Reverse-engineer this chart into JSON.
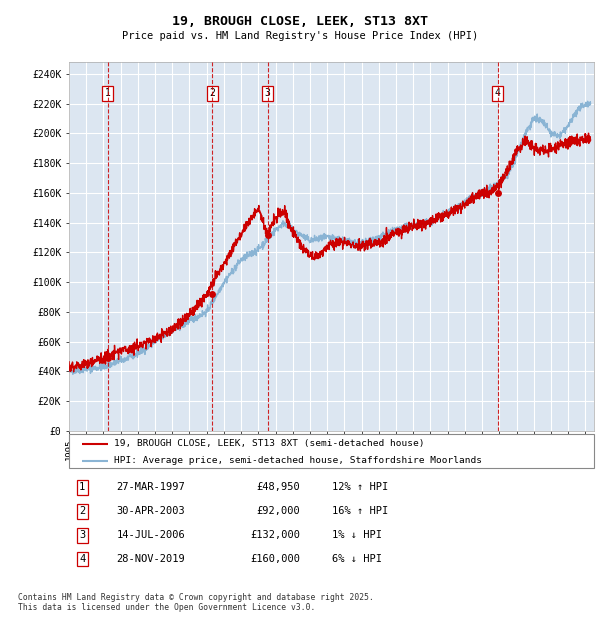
{
  "title": "19, BROUGH CLOSE, LEEK, ST13 8XT",
  "subtitle": "Price paid vs. HM Land Registry's House Price Index (HPI)",
  "ylabel_vals": [
    "£0",
    "£20K",
    "£40K",
    "£60K",
    "£80K",
    "£100K",
    "£120K",
    "£140K",
    "£160K",
    "£180K",
    "£200K",
    "£220K",
    "£240K"
  ],
  "yticks": [
    0,
    20000,
    40000,
    60000,
    80000,
    100000,
    120000,
    140000,
    160000,
    180000,
    200000,
    220000,
    240000
  ],
  "ylim": [
    0,
    248000
  ],
  "xlim_start": 1995.0,
  "xlim_end": 2025.5,
  "plot_bg_color": "#dce6f1",
  "grid_color": "#ffffff",
  "hpi_color": "#8ab4d4",
  "price_color": "#cc0000",
  "marker_color": "#cc0000",
  "vline_color": "#cc0000",
  "transaction_dates": [
    1997.24,
    2003.33,
    2006.54,
    2019.91
  ],
  "transaction_prices": [
    48950,
    92000,
    132000,
    160000
  ],
  "transaction_labels": [
    "1",
    "2",
    "3",
    "4"
  ],
  "legend_line1": "19, BROUGH CLOSE, LEEK, ST13 8XT (semi-detached house)",
  "legend_line2": "HPI: Average price, semi-detached house, Staffordshire Moorlands",
  "table_rows": [
    [
      "1",
      "27-MAR-1997",
      "£48,950",
      "12% ↑ HPI"
    ],
    [
      "2",
      "30-APR-2003",
      "£92,000",
      "16% ↑ HPI"
    ],
    [
      "3",
      "14-JUL-2006",
      "£132,000",
      "1% ↓ HPI"
    ],
    [
      "4",
      "28-NOV-2019",
      "£160,000",
      "6% ↓ HPI"
    ]
  ],
  "footnote": "Contains HM Land Registry data © Crown copyright and database right 2025.\nThis data is licensed under the Open Government Licence v3.0.",
  "xticks": [
    1995,
    1996,
    1997,
    1998,
    1999,
    2000,
    2001,
    2002,
    2003,
    2004,
    2005,
    2006,
    2007,
    2008,
    2009,
    2010,
    2011,
    2012,
    2013,
    2014,
    2015,
    2016,
    2017,
    2018,
    2019,
    2020,
    2021,
    2022,
    2023,
    2024,
    2025
  ]
}
